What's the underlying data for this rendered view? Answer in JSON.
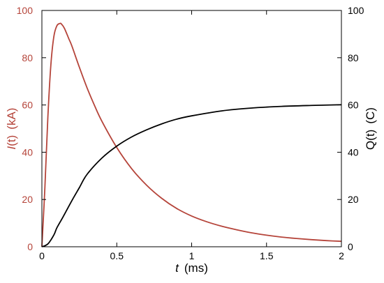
{
  "chart_data": {
    "type": "line",
    "xlabel": {
      "var": "t",
      "unit": "(ms)"
    },
    "ylabel_left": {
      "var": "I",
      "rest": "(t)",
      "unit": "(kA)"
    },
    "ylabel_right": {
      "var": "Q",
      "rest": "(t)",
      "unit": "(C)"
    },
    "xlim": [
      0,
      2
    ],
    "ylim_left": [
      0,
      100
    ],
    "ylim_right": [
      0,
      100
    ],
    "x_ticks": [
      "0",
      "0.5",
      "1",
      "1.5",
      "2"
    ],
    "y_ticks_left": [
      "0",
      "20",
      "40",
      "60",
      "80",
      "100"
    ],
    "y_ticks_right": [
      "0",
      "20",
      "40",
      "60",
      "80",
      "100"
    ],
    "grid": false,
    "colors": {
      "current": "#b5443a",
      "charge": "#000000",
      "axis": "#000000"
    },
    "series": [
      {
        "axis": "left",
        "x": [
          0,
          0.02,
          0.04,
          0.06,
          0.08,
          0.1,
          0.12,
          0.13,
          0.15,
          0.18,
          0.2,
          0.25,
          0.3,
          0.35,
          0.4,
          0.5,
          0.6,
          0.7,
          0.8,
          0.9,
          1.0,
          1.1,
          1.2,
          1.3,
          1.4,
          1.5,
          1.6,
          1.7,
          1.8,
          1.9,
          2.0
        ],
        "y": [
          0,
          25,
          55,
          77,
          89,
          93.5,
          94.5,
          94.3,
          92.5,
          88,
          85,
          76,
          67.5,
          60,
          53.2,
          42,
          33,
          26,
          20.5,
          16.2,
          13,
          10.6,
          8.7,
          7.2,
          5.9,
          4.9,
          4.1,
          3.5,
          3.0,
          2.6,
          2.3
        ]
      },
      {
        "axis": "right",
        "x": [
          0,
          0.04,
          0.08,
          0.1,
          0.14,
          0.2,
          0.25,
          0.3,
          0.4,
          0.5,
          0.6,
          0.7,
          0.8,
          0.9,
          1.0,
          1.2,
          1.4,
          1.6,
          1.8,
          2.0
        ],
        "y": [
          0,
          1.2,
          5,
          8,
          12.5,
          19.5,
          25,
          30.5,
          37.5,
          42.6,
          46.5,
          49.5,
          52,
          54,
          55.4,
          57.5,
          58.7,
          59.4,
          59.8,
          60.1
        ]
      }
    ]
  }
}
